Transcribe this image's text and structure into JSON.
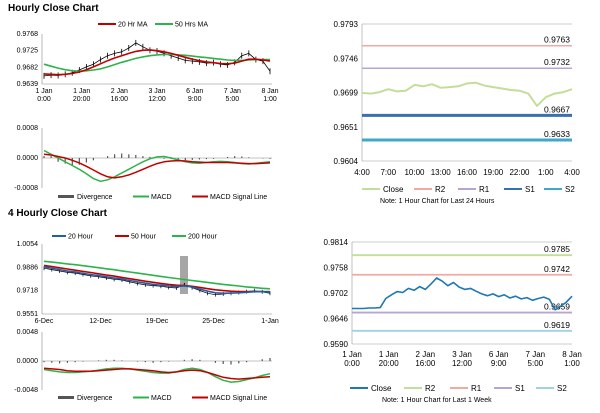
{
  "sections": {
    "hourly_title": "Hourly Close Chart",
    "four_hourly_title": "4 Hourly Close Chart"
  },
  "colors": {
    "ma20_red": "#c00000",
    "ma50_green": "#2db34a",
    "ma200_green": "#2db34a",
    "ma20_blue": "#1f5fa8",
    "close_light": "#c3de9a",
    "close_blue": "#1f77b4",
    "r2_hourly": "#f2a9a0",
    "r1_hourly": "#b8a4d3",
    "s1_hourly": "#3a6fb0",
    "s2_hourly": "#3fa7c9",
    "r2_weekly": "#c3de9a",
    "r1_weekly": "#f2a9a0",
    "s1_weekly": "#b8a4d3",
    "s2_weekly": "#9fd3e0",
    "macd_green": "#2db34a",
    "signal_red": "#c00000",
    "divergence": "#555555"
  },
  "chart_data": [
    {
      "id": "hourly_price_ma",
      "type": "line",
      "title": "",
      "legend": [
        "20 Hr MA",
        "50 Hrs MA"
      ],
      "x_tick_labels": [
        [
          "1 Jan",
          "0:00"
        ],
        [
          "1 Jan",
          "20:00"
        ],
        [
          "2 Jan",
          "16:00"
        ],
        [
          "3 Jan",
          "12:00"
        ],
        [
          "6 Jan",
          "9:00"
        ],
        [
          "7 Jan",
          "5:00"
        ],
        [
          "8 Jan",
          "1:00"
        ]
      ],
      "y_tick_labels": [
        "0.9768",
        "0.9725",
        "0.9682",
        "0.9639"
      ],
      "ylim": [
        0.9639,
        0.9768
      ],
      "series": [
        {
          "name": "Price",
          "values": [
            0.966,
            0.9662,
            0.9661,
            0.9664,
            0.9668,
            0.9675,
            0.9683,
            0.969,
            0.9702,
            0.9712,
            0.9718,
            0.9722,
            0.9732,
            0.9745,
            0.9735,
            0.9726,
            0.9724,
            0.9718,
            0.9712,
            0.9706,
            0.97,
            0.9698,
            0.9696,
            0.9693,
            0.9694,
            0.969,
            0.9688,
            0.9695,
            0.9712,
            0.9718,
            0.9702,
            0.9698,
            0.9672
          ]
        },
        {
          "name": "20 Hr MA",
          "values": [
            0.9665,
            0.9664,
            0.9663,
            0.9664,
            0.9666,
            0.967,
            0.9676,
            0.9683,
            0.9691,
            0.9699,
            0.9706,
            0.9712,
            0.9718,
            0.9723,
            0.9726,
            0.9727,
            0.9725,
            0.9722,
            0.9718,
            0.9713,
            0.9708,
            0.9703,
            0.9699,
            0.9696,
            0.9694,
            0.9692,
            0.9691,
            0.9693,
            0.9698,
            0.9703,
            0.9703,
            0.9701,
            0.9698
          ]
        },
        {
          "name": "50 Hrs MA",
          "values": [
            0.969,
            0.9685,
            0.968,
            0.9676,
            0.9673,
            0.9672,
            0.9673,
            0.9675,
            0.9678,
            0.9683,
            0.9689,
            0.9695,
            0.97,
            0.9705,
            0.9709,
            0.9712,
            0.9714,
            0.9715,
            0.9715,
            0.9714,
            0.9713,
            0.9711,
            0.9709,
            0.9707,
            0.9705,
            0.9703,
            0.9701,
            0.97,
            0.97,
            0.9701,
            0.9702,
            0.9702,
            0.9702
          ]
        }
      ]
    },
    {
      "id": "hourly_macd",
      "type": "line",
      "legend": [
        "Divergence",
        "MACD",
        "MACD Signal Line"
      ],
      "y_tick_labels": [
        "0.0008",
        "0.0000",
        "-0.0008"
      ],
      "ylim": [
        -0.0008,
        0.0008
      ],
      "series": [
        {
          "name": "Divergence",
          "values": [
            5e-05,
            5e-05,
            -0.0001,
            -0.00015,
            -0.0002,
            -0.00018,
            -0.00012,
            -6e-05,
            0.0,
            5e-05,
            0.0001,
            0.00012,
            0.0001,
            8e-05,
            5e-05,
            3e-05,
            0.0,
            -2e-05,
            -3e-05,
            -4e-05,
            -6e-05,
            -5e-05,
            -4e-05,
            -3e-05,
            -2e-05,
            0.0,
            3e-05,
            5e-05,
            4e-05,
            2e-05,
            0.0,
            -1e-05,
            -2e-05
          ]
        },
        {
          "name": "MACD",
          "values": [
            0.0002,
            0.0001,
            0.0,
            -0.0001,
            -0.0002,
            -0.0003,
            -0.00042,
            -0.00055,
            -0.00062,
            -0.00058,
            -0.0005,
            -0.0004,
            -0.0003,
            -0.0002,
            -0.0001,
            -2e-05,
            3e-05,
            4e-05,
            0.0,
            -5e-05,
            -0.0001,
            -0.00013,
            -0.00014,
            -0.00012,
            -0.0001,
            -9e-05,
            -0.0001,
            -0.00012,
            -0.00015,
            -0.00016,
            -0.00014,
            -0.00012,
            -0.0001
          ]
        },
        {
          "name": "MACD Signal Line",
          "values": [
            0.0001,
            8e-05,
            4e-05,
            0.0,
            -6e-05,
            -0.00013,
            -0.00022,
            -0.00032,
            -0.00042,
            -0.0005,
            -0.00053,
            -0.0005,
            -0.00045,
            -0.00038,
            -0.0003,
            -0.00022,
            -0.00015,
            -0.0001,
            -8e-05,
            -7e-05,
            -8e-05,
            -0.0001,
            -0.00011,
            -0.00012,
            -0.00012,
            -0.00012,
            -0.00012,
            -0.00013,
            -0.00014,
            -0.00015,
            -0.00015,
            -0.00014,
            -0.00013
          ]
        }
      ]
    },
    {
      "id": "hourly_levels",
      "type": "line",
      "legend": [
        "Close",
        "R2",
        "R1",
        "S1",
        "S2"
      ],
      "note": "Note: 1 Hour Chart for Last 24 Hours",
      "x_tick_labels": [
        "4:00",
        "7:00",
        "10:00",
        "13:00",
        "16:00",
        "19:00",
        "22:00",
        "1:00",
        "4:00"
      ],
      "y_tick_labels": [
        "0.9793",
        "0.9746",
        "0.9699",
        "0.9651",
        "0.9604"
      ],
      "ylim": [
        0.9604,
        0.9793
      ],
      "levels": [
        {
          "name": "R2",
          "value": 0.9763,
          "label": "0.9763"
        },
        {
          "name": "R1",
          "value": 0.9732,
          "label": "0.9732"
        },
        {
          "name": "S1",
          "value": 0.9667,
          "label": "0.9667"
        },
        {
          "name": "S2",
          "value": 0.9633,
          "label": "0.9633"
        }
      ],
      "series": [
        {
          "name": "Close",
          "values": [
            0.9698,
            0.9697,
            0.9699,
            0.9703,
            0.97,
            0.9701,
            0.9709,
            0.9707,
            0.971,
            0.9705,
            0.9706,
            0.9707,
            0.9711,
            0.9712,
            0.9708,
            0.9706,
            0.9704,
            0.9702,
            0.9701,
            0.9697,
            0.968,
            0.9692,
            0.9697,
            0.9699,
            0.9703
          ]
        }
      ]
    },
    {
      "id": "four_hourly_price_ma",
      "type": "line",
      "legend": [
        "20 Hour",
        "50 Hour",
        "200 Hour"
      ],
      "x_tick_labels": [
        "6-Dec",
        "12-Dec",
        "19-Dec",
        "25-Dec",
        "1-Jan"
      ],
      "y_tick_labels": [
        "1.0054",
        "0.9886",
        "0.9718",
        "0.9551"
      ],
      "ylim": [
        0.9551,
        1.0054
      ],
      "series": [
        {
          "name": "Price",
          "values": [
            0.988,
            0.987,
            0.986,
            0.985,
            0.9845,
            0.9835,
            0.9825,
            0.9818,
            0.981,
            0.98,
            0.9795,
            0.9782,
            0.977,
            0.976,
            0.9755,
            0.975,
            0.9742,
            0.9738,
            0.976,
            0.974,
            0.972,
            0.97,
            0.969,
            0.9695,
            0.97,
            0.9705,
            0.9712,
            0.9718,
            0.971,
            0.97
          ]
        },
        {
          "name": "20 Hour",
          "values": [
            0.989,
            0.988,
            0.987,
            0.986,
            0.9852,
            0.9843,
            0.9835,
            0.9826,
            0.9818,
            0.981,
            0.9802,
            0.9792,
            0.9782,
            0.9772,
            0.9764,
            0.9758,
            0.9752,
            0.9748,
            0.9752,
            0.9745,
            0.973,
            0.9715,
            0.9703,
            0.97,
            0.9701,
            0.9703,
            0.9707,
            0.9711,
            0.9711,
            0.9708
          ]
        },
        {
          "name": "50 Hour",
          "values": [
            0.99,
            0.9892,
            0.9883,
            0.9874,
            0.9866,
            0.9857,
            0.9849,
            0.984,
            0.9831,
            0.9823,
            0.9814,
            0.9805,
            0.9796,
            0.9787,
            0.9779,
            0.9771,
            0.9764,
            0.9758,
            0.9755,
            0.975,
            0.9742,
            0.9733,
            0.9725,
            0.9719,
            0.9715,
            0.9713,
            0.9712,
            0.9712,
            0.9712,
            0.9711
          ]
        },
        {
          "name": "200 Hour",
          "values": [
            0.993,
            0.9924,
            0.9918,
            0.9911,
            0.9905,
            0.9898,
            0.9891,
            0.9884,
            0.9876,
            0.9869,
            0.9861,
            0.9853,
            0.9845,
            0.9837,
            0.9829,
            0.9821,
            0.9813,
            0.9806,
            0.9799,
            0.9792,
            0.9785,
            0.9778,
            0.9771,
            0.9764,
            0.9758,
            0.9752,
            0.9746,
            0.9741,
            0.9736,
            0.9732
          ]
        }
      ]
    },
    {
      "id": "four_hourly_macd",
      "type": "line",
      "legend": [
        "Divergence",
        "MACD",
        "MACD Signal Line"
      ],
      "y_tick_labels": [
        "0.0048",
        "0.0000",
        "-0.0048"
      ],
      "ylim": [
        -0.0048,
        0.0048
      ],
      "series": [
        {
          "name": "Divergence",
          "values": [
            -0.0002,
            -0.0003,
            -0.0004,
            -0.0003,
            -0.0002,
            -0.0001,
            0.0,
            0.0001,
            0.0002,
            0.0002,
            0.0001,
            0.0,
            -0.0001,
            -0.0002,
            -0.0003,
            -0.0002,
            -0.0001,
            0.0,
            0.0002,
            0.0003,
            0.0002,
            0.0,
            -0.0003,
            -0.0005,
            -0.0006,
            -0.0004,
            -0.0002,
            0.0,
            0.0003,
            0.0005
          ]
        },
        {
          "name": "MACD",
          "values": [
            -0.0014,
            -0.0016,
            -0.0018,
            -0.0019,
            -0.0019,
            -0.0018,
            -0.0017,
            -0.0015,
            -0.0013,
            -0.0012,
            -0.0012,
            -0.0013,
            -0.0015,
            -0.0017,
            -0.0019,
            -0.002,
            -0.002,
            -0.0018,
            -0.0014,
            -0.0012,
            -0.0014,
            -0.0019,
            -0.0026,
            -0.0032,
            -0.0035,
            -0.0034,
            -0.0031,
            -0.0028,
            -0.0024,
            -0.0021
          ]
        },
        {
          "name": "MACD Signal Line",
          "values": [
            -0.0012,
            -0.0013,
            -0.0014,
            -0.0016,
            -0.0017,
            -0.0017,
            -0.0017,
            -0.0016,
            -0.0015,
            -0.0014,
            -0.0013,
            -0.0013,
            -0.0014,
            -0.0015,
            -0.0016,
            -0.0018,
            -0.0019,
            -0.0018,
            -0.0016,
            -0.0015,
            -0.0016,
            -0.0019,
            -0.0023,
            -0.0027,
            -0.0029,
            -0.003,
            -0.0029,
            -0.0028,
            -0.0027,
            -0.0026
          ]
        }
      ]
    },
    {
      "id": "weekly_levels",
      "type": "line",
      "legend": [
        "Close",
        "R2",
        "R1",
        "S1",
        "S2"
      ],
      "note": "Note: 1 Hour Chart for Last 1 Week",
      "x_tick_labels": [
        [
          "1 Jan",
          "0:00"
        ],
        [
          "1 Jan",
          "20:00"
        ],
        [
          "2 Jan",
          "16:00"
        ],
        [
          "3 Jan",
          "12:00"
        ],
        [
          "6 Jan",
          "9:00"
        ],
        [
          "7 Jan",
          "5:00"
        ],
        [
          "8 Jan",
          "1:00"
        ]
      ],
      "y_tick_labels": [
        "0.9814",
        "0.9758",
        "0.9702",
        "0.9646",
        "0.9590"
      ],
      "ylim": [
        0.959,
        0.9814
      ],
      "levels": [
        {
          "name": "R2",
          "value": 0.9785,
          "label": "0.9785"
        },
        {
          "name": "R1",
          "value": 0.9742,
          "label": "0.9742"
        },
        {
          "name": "S1",
          "value": 0.9659,
          "label": "0.9659"
        },
        {
          "name": "S2",
          "value": 0.9619,
          "label": "0.9619"
        }
      ],
      "series": [
        {
          "name": "Close",
          "values": [
            0.9668,
            0.9668,
            0.9668,
            0.9669,
            0.9669,
            0.967,
            0.969,
            0.9698,
            0.9705,
            0.9703,
            0.9712,
            0.9708,
            0.9716,
            0.971,
            0.9722,
            0.9735,
            0.9728,
            0.9718,
            0.9725,
            0.9715,
            0.971,
            0.9712,
            0.9706,
            0.97,
            0.9696,
            0.97,
            0.9694,
            0.9698,
            0.9691,
            0.9695,
            0.9689,
            0.9692,
            0.9686,
            0.969,
            0.9693,
            0.9688,
            0.9665,
            0.9673,
            0.9682,
            0.9695
          ]
        }
      ]
    }
  ]
}
